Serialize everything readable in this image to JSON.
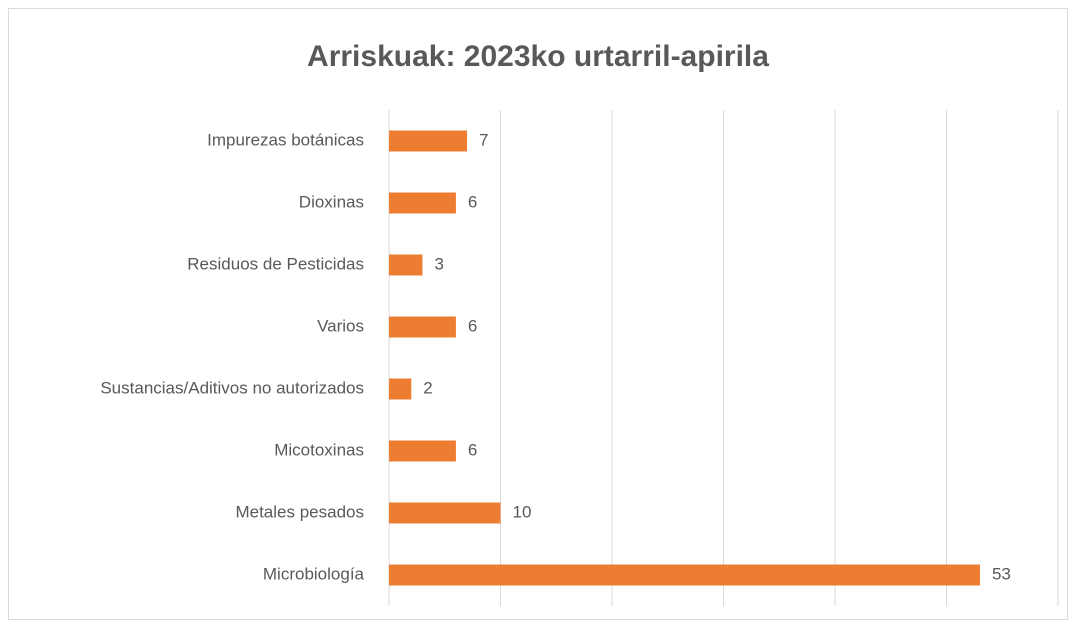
{
  "chart_data": {
    "type": "bar",
    "orientation": "horizontal",
    "title": "Arriskuak: 2023ko urtarril-apirila",
    "categories": [
      "Impurezas botánicas",
      "Dioxinas",
      "Residuos de Pesticidas",
      "Varios",
      "Sustancias/Aditivos no autorizados",
      "Micotoxinas",
      "Metales pesados",
      "Microbiología"
    ],
    "values": [
      7,
      6,
      3,
      6,
      2,
      6,
      10,
      53
    ],
    "color": "#ed7d31",
    "xlim": [
      0,
      60
    ],
    "xticks": [
      0,
      10,
      20,
      30,
      40,
      50,
      60
    ],
    "grid": true
  }
}
